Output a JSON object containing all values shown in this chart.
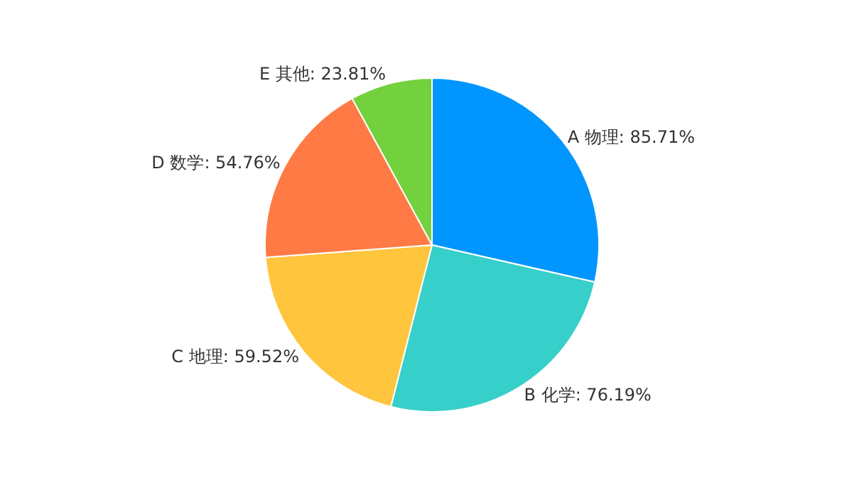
{
  "chart_data": {
    "type": "pie",
    "categories": [
      "A 物理",
      "B 化学",
      "C 地理",
      "D 数学",
      "E 其他"
    ],
    "values": [
      85.71,
      76.19,
      59.52,
      54.76,
      23.81
    ],
    "value_labels": [
      "85.71%",
      "76.19%",
      "59.52%",
      "54.76%",
      "23.81%"
    ],
    "colors": [
      "#0095ff",
      "#36cfca",
      "#ffc53d",
      "#ff7a45",
      "#73d13d"
    ],
    "legend": false
  }
}
